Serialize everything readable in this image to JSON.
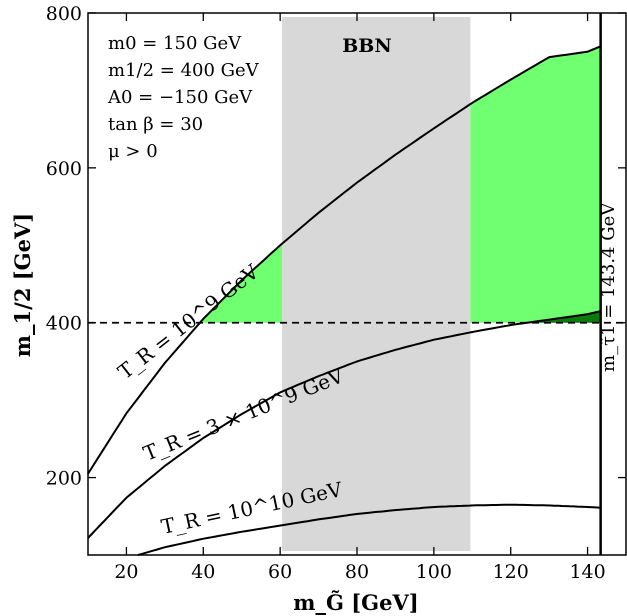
{
  "chart_data": {
    "type": "line",
    "xlabel": "m_G̃ [GeV]",
    "ylabel": "m_1/2 [GeV]",
    "xlim": [
      10,
      150
    ],
    "ylim": [
      100,
      800
    ],
    "x_ticks": [
      20,
      40,
      60,
      80,
      100,
      120,
      140
    ],
    "y_ticks": [
      200,
      400,
      600,
      800
    ],
    "parameters": [
      "m0 = 150 GeV",
      "m1/2 = 400 GeV",
      "A0 = −150 GeV",
      "tan β = 30",
      "μ > 0"
    ],
    "bbn_band": {
      "label": "BBN",
      "x_range": [
        60.5,
        109.5
      ],
      "color": "#d8d8d8"
    },
    "horizontal_line": {
      "y": 400,
      "style": "dashed"
    },
    "vertical_line": {
      "x": 143.4,
      "label": "m_τ̃1 = 143.4 GeV"
    },
    "allowed_color": "#70ff70",
    "dark_allowed_color": "#0b7a0b",
    "series": [
      {
        "name": "T_R = 10^9 GeV",
        "x": [
          10,
          20,
          30,
          40,
          50,
          60,
          70,
          80,
          90,
          100,
          110,
          120,
          130,
          140,
          143.4
        ],
        "y": [
          205,
          283,
          348,
          405,
          455,
          500,
          542,
          581,
          617,
          651,
          684,
          714,
          743,
          750,
          757
        ]
      },
      {
        "name": "T_R = 3 × 10^9 GeV",
        "x": [
          10,
          20,
          30,
          40,
          50,
          60,
          70,
          80,
          90,
          100,
          110,
          120,
          130,
          140,
          143.4
        ],
        "y": [
          122,
          174,
          215,
          251,
          282,
          310,
          331,
          350,
          365,
          378,
          388,
          397,
          404,
          411,
          415
        ]
      },
      {
        "name": "T_R = 10^10 GeV",
        "x": [
          23,
          30,
          40,
          50,
          60,
          70,
          80,
          90,
          100,
          110,
          120,
          130,
          140,
          143.4
        ],
        "y": [
          100,
          110,
          121,
          130,
          138,
          146,
          153,
          158,
          162,
          164,
          165,
          164,
          162,
          161
        ]
      }
    ]
  }
}
